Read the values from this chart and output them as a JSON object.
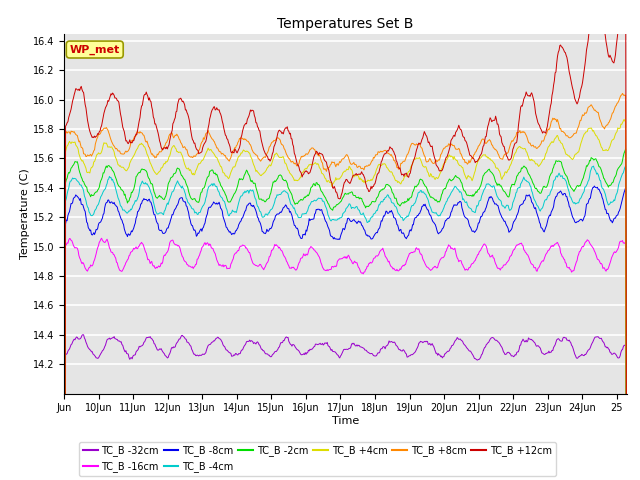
{
  "title": "Temperatures Set B",
  "xlabel": "Time",
  "ylabel": "Temperature (C)",
  "ylim": [
    14.0,
    16.45
  ],
  "yticks": [
    14.2,
    14.4,
    14.6,
    14.8,
    15.0,
    15.2,
    15.4,
    15.6,
    15.8,
    16.0,
    16.2,
    16.4
  ],
  "series_order": [
    "TC_B -32cm",
    "TC_B -16cm",
    "TC_B -8cm",
    "TC_B -4cm",
    "TC_B -2cm",
    "TC_B +4cm",
    "TC_B +8cm",
    "TC_B +12cm"
  ],
  "series_colors": {
    "TC_B -32cm": "#9900cc",
    "TC_B -16cm": "#ff00ff",
    "TC_B -8cm": "#0000ee",
    "TC_B -4cm": "#00cccc",
    "TC_B -2cm": "#00dd00",
    "TC_B +4cm": "#dddd00",
    "TC_B +8cm": "#ff8800",
    "TC_B +12cm": "#cc0000"
  },
  "n_points": 720,
  "x_start": 9.0,
  "x_end": 25.3,
  "xtick_positions": [
    9,
    10,
    11,
    12,
    13,
    14,
    15,
    16,
    17,
    18,
    19,
    20,
    21,
    22,
    23,
    24,
    25
  ],
  "xtick_labels": [
    "Jun",
    "10Jun",
    "11Jun",
    "12Jun",
    "13Jun",
    "14Jun",
    "15Jun",
    "16Jun",
    "17Jun",
    "18Jun",
    "19Jun",
    "20Jun",
    "21Jun",
    "22Jun",
    "23Jun",
    "24Jun",
    "25"
  ],
  "wp_met_label": "WP_met",
  "wp_met_color": "#cc0000",
  "wp_met_bg": "#ffff99",
  "background_color": "#e5e5e5",
  "grid_color": "#ffffff",
  "line_width": 0.7,
  "legend_ncol": 6
}
